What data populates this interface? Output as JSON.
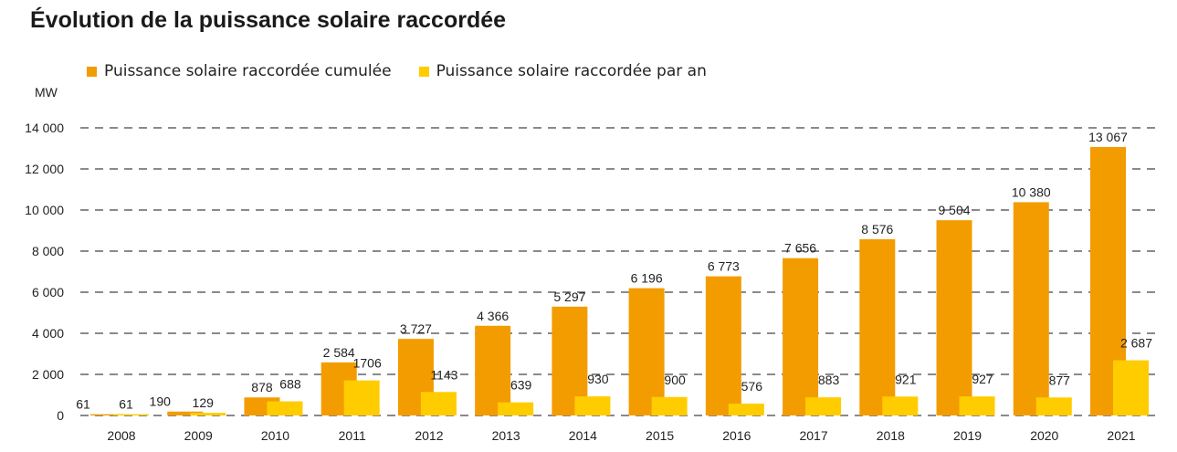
{
  "title": "Évolution de la puissance solaire raccordée",
  "chart_data": {
    "type": "bar",
    "title": "Évolution de la puissance solaire raccordée",
    "ylabel": "MW",
    "xlabel": "",
    "ylim": [
      0,
      14000
    ],
    "yticks": [
      0,
      2000,
      4000,
      6000,
      8000,
      10000,
      12000,
      14000
    ],
    "ytick_labels": [
      "0",
      "2 000",
      "4 000",
      "6 000",
      "8 000",
      "10 000",
      "12 000",
      "14 000"
    ],
    "grid": true,
    "legend_placement": "top-left",
    "categories": [
      "2008",
      "2009",
      "2010",
      "2011",
      "2012",
      "2013",
      "2014",
      "2015",
      "2016",
      "2017",
      "2018",
      "2019",
      "2020",
      "2021"
    ],
    "series": [
      {
        "name": "Puissance solaire raccordée cumulée",
        "color": "#f39c00",
        "values": [
          61,
          190,
          878,
          2584,
          3727,
          4366,
          5297,
          6196,
          6773,
          7656,
          8576,
          9504,
          10380,
          13067
        ],
        "labels": [
          "61",
          "190",
          "878",
          "2 584",
          "3 727",
          "4 366",
          "5 297",
          "6 196",
          "6 773",
          "7 656",
          "8 576",
          "9 504",
          "10 380",
          "13 067"
        ]
      },
      {
        "name": "Puissance solaire raccordée par an",
        "color": "#ffcc00",
        "values": [
          61,
          129,
          688,
          1706,
          1143,
          639,
          930,
          900,
          576,
          883,
          921,
          927,
          877,
          2687
        ],
        "labels": [
          "61",
          "129",
          "688",
          "1706",
          "1143",
          "639",
          "930",
          "900",
          "576",
          "883",
          "921",
          "927",
          "877",
          "2 687"
        ]
      }
    ]
  }
}
